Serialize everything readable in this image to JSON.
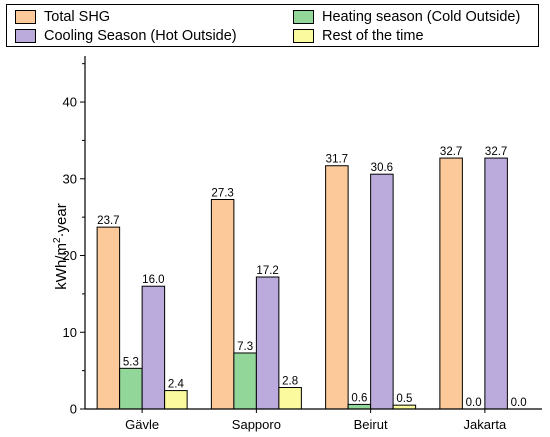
{
  "chart_data": {
    "type": "bar",
    "categories": [
      "Gävle",
      "Sapporo",
      "Beirut",
      "Jakarta"
    ],
    "series": [
      {
        "name": "Total SHG",
        "values": [
          23.7,
          27.3,
          31.7,
          32.7
        ],
        "labels": [
          "23.7",
          "27.3",
          "31.7",
          "32.7"
        ],
        "color": "#FBC99A"
      },
      {
        "name": "Heating season (Cold Outside)",
        "values": [
          5.3,
          7.3,
          0.6,
          0.0
        ],
        "labels": [
          "5.3",
          "7.3",
          "0.6",
          "0.0"
        ],
        "color": "#92D699"
      },
      {
        "name": "Cooling Season (Hot Outside)",
        "values": [
          16.0,
          17.2,
          30.6,
          32.7
        ],
        "labels": [
          "16.0",
          "17.2",
          "30.6",
          "32.7"
        ],
        "color": "#BBABDC"
      },
      {
        "name": "Rest of the time",
        "values": [
          2.4,
          2.8,
          0.5,
          0.0
        ],
        "labels": [
          "2.4",
          "2.8",
          "0.5",
          "0.0"
        ],
        "color": "#FCFA9E"
      }
    ],
    "ylabel_main": "kWh/m",
    "ylabel_sup": "2",
    "ylabel_tail": "·year",
    "ylim": [
      0,
      46
    ],
    "yticks": [
      "0",
      "10",
      "20",
      "30",
      "40"
    ],
    "grid": false,
    "legend_position": "top"
  }
}
